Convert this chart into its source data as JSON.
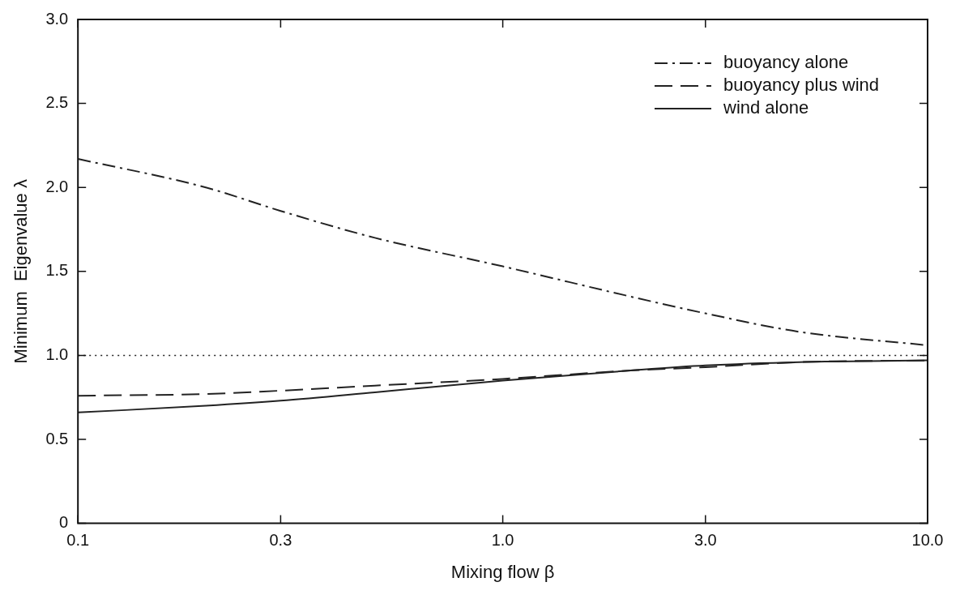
{
  "chart_data": {
    "type": "line",
    "xlabel": "Mixing flow β",
    "ylabel": "Minimum  Eigenvalue λ",
    "log": "x",
    "xlim": [
      0.1,
      10
    ],
    "xticks": [
      {
        "value": 0.1,
        "label": "0.1"
      },
      {
        "value": 0.3,
        "label": "0.3"
      },
      {
        "value": 1,
        "label": "1.0"
      },
      {
        "value": 3,
        "label": "3.0"
      },
      {
        "value": 10,
        "label": "10.0"
      }
    ],
    "ylim": [
      0,
      3
    ],
    "yticks": [
      0,
      {
        "value": 0.5,
        "label": "0.5"
      },
      {
        "value": 1,
        "label": "1.0"
      },
      {
        "value": 1.5,
        "label": "1.5"
      },
      {
        "value": 2,
        "label": "2.0"
      },
      {
        "value": 2.5,
        "label": "2.5"
      },
      {
        "value": 3,
        "label": "3.0"
      }
    ],
    "grid": false,
    "legend": "top right",
    "marker": "none",
    "series": [
      {
        "name": "buoyancy alone",
        "color": "#222222",
        "line_style": "dashdot",
        "x": [
          0.1,
          0.2,
          0.3,
          0.5,
          1,
          2,
          3,
          5,
          10
        ],
        "values": [
          2.17,
          2.0,
          1.86,
          1.7,
          1.53,
          1.35,
          1.25,
          1.14,
          1.06
        ]
      },
      {
        "name": "buoyancy plus wind",
        "color": "#222222",
        "line_style": "dashed",
        "x": [
          0.1,
          0.2,
          0.3,
          0.5,
          1,
          2,
          3,
          5,
          10
        ],
        "values": [
          0.76,
          0.77,
          0.79,
          0.82,
          0.86,
          0.91,
          0.93,
          0.96,
          0.97
        ]
      },
      {
        "name": "wind alone",
        "color": "#222222",
        "line_style": "solid",
        "x": [
          0.1,
          0.2,
          0.3,
          0.5,
          1,
          2,
          3,
          5,
          10
        ],
        "values": [
          0.66,
          0.7,
          0.73,
          0.78,
          0.85,
          0.91,
          0.94,
          0.96,
          0.97
        ]
      }
    ],
    "ref_lines": [
      {
        "axis": "y",
        "value": 1.0,
        "color": "#222222",
        "line_style": "dotted"
      }
    ]
  }
}
